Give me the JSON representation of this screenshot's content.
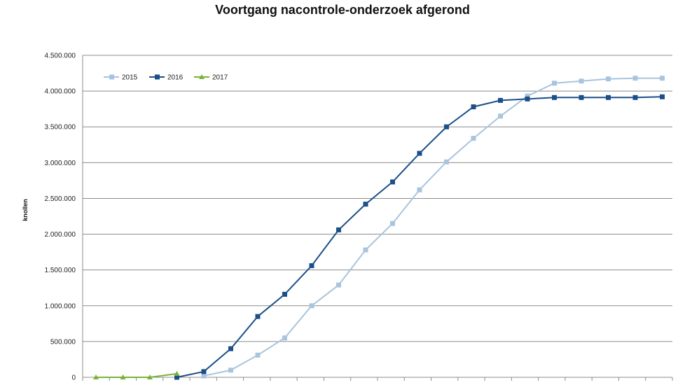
{
  "title": "Voortgang nacontrole-onderzoek afgerond",
  "chart_data": {
    "type": "line",
    "title": "Voortgang nacontrole-onderzoek afgerond",
    "xlabel": "",
    "ylabel": "knollen",
    "ylim": [
      0,
      4500000
    ],
    "yticks": [
      {
        "value": 0,
        "label": "0"
      },
      {
        "value": 500000,
        "label": "500.000"
      },
      {
        "value": 1000000,
        "label": "1.000.000"
      },
      {
        "value": 1500000,
        "label": "1.500.000"
      },
      {
        "value": 2000000,
        "label": "2.000.000"
      },
      {
        "value": 2500000,
        "label": "2.500.000"
      },
      {
        "value": 3000000,
        "label": "3.000.000"
      },
      {
        "value": 3500000,
        "label": "3.500.000"
      },
      {
        "value": 4000000,
        "label": "4.000.000"
      },
      {
        "value": 4500000,
        "label": "4.500.000"
      }
    ],
    "grid": true,
    "legend_position": "top-left",
    "x_count": 22,
    "series": [
      {
        "name": "2015",
        "color": "#a9c4de",
        "marker": "square",
        "values": [
          null,
          null,
          null,
          null,
          20000,
          100000,
          310000,
          550000,
          1000000,
          1290000,
          1780000,
          2150000,
          2620000,
          3010000,
          3340000,
          3650000,
          3930000,
          4110000,
          4140000,
          4170000,
          4180000,
          4180000
        ]
      },
      {
        "name": "2016",
        "color": "#1b4f88",
        "marker": "square",
        "values": [
          null,
          null,
          null,
          0,
          80000,
          400000,
          850000,
          1160000,
          1560000,
          2060000,
          2420000,
          2730000,
          3130000,
          3500000,
          3780000,
          3870000,
          3890000,
          3910000,
          3910000,
          3910000,
          3910000,
          3920000
        ]
      },
      {
        "name": "2017",
        "color": "#7bb23a",
        "marker": "triangle",
        "values": [
          0,
          0,
          0,
          50000,
          null,
          null,
          null,
          null,
          null,
          null,
          null,
          null,
          null,
          null,
          null,
          null,
          null,
          null,
          null,
          null,
          null,
          null
        ]
      }
    ]
  }
}
